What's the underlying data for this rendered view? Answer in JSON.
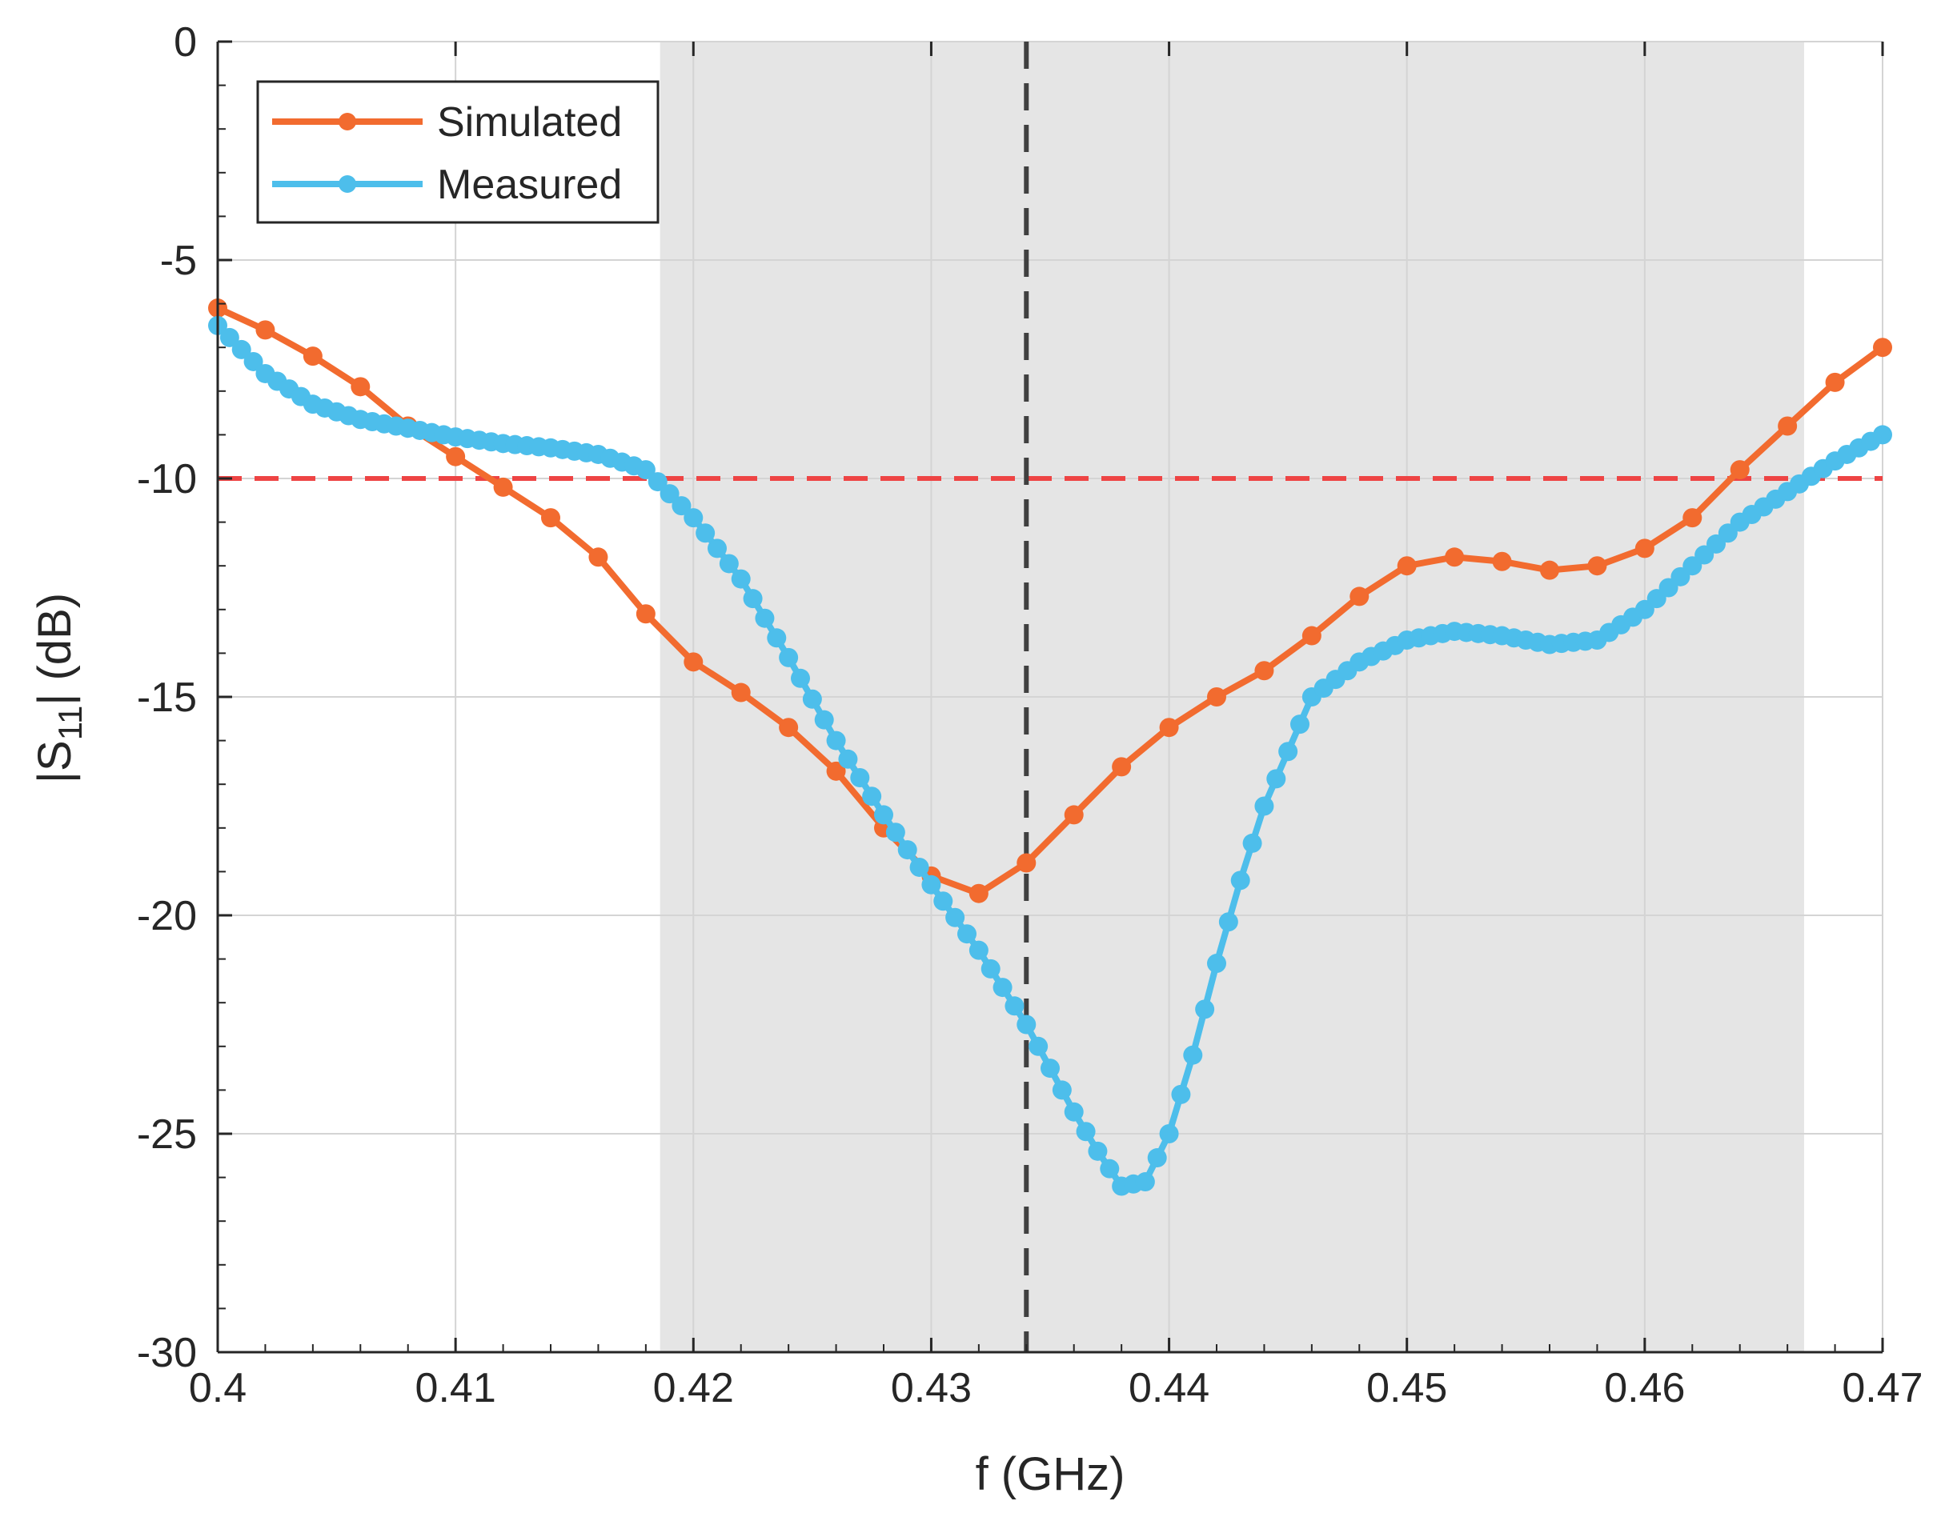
{
  "chart_data": {
    "type": "line",
    "title": "",
    "xlabel": "f (GHz)",
    "ylabel": {
      "prefix": "|S",
      "subscript": "11",
      "suffix": "| (dB)"
    },
    "xlim": [
      0.4,
      0.47
    ],
    "ylim": [
      -30,
      0
    ],
    "xticks": [
      0.4,
      0.41,
      0.42,
      0.43,
      0.44,
      0.45,
      0.46,
      0.47
    ],
    "xtick_labels": [
      "0.4",
      "0.41",
      "0.42",
      "0.43",
      "0.44",
      "0.45",
      "0.46",
      "0.47"
    ],
    "yticks": [
      0,
      -5,
      -10,
      -15,
      -20,
      -25,
      -30
    ],
    "ytick_labels": [
      "0",
      "-5",
      "-10",
      "-15",
      "-20",
      "-25",
      "-30"
    ],
    "grid": true,
    "legend": {
      "position": "top-left"
    },
    "shaded_band": {
      "x_start": 0.4186,
      "x_end": 0.4667,
      "color": "#e5e5e5"
    },
    "reference_lines": [
      {
        "orientation": "horizontal",
        "value": -10,
        "color": "#ee4444",
        "style": "dashed"
      },
      {
        "orientation": "vertical",
        "value": 0.434,
        "color": "#404040",
        "style": "dashed"
      }
    ],
    "series": [
      {
        "name": "Simulated",
        "color": "#f26b2f",
        "x": [
          0.4,
          0.402,
          0.404,
          0.406,
          0.408,
          0.41,
          0.412,
          0.414,
          0.416,
          0.418,
          0.42,
          0.422,
          0.424,
          0.426,
          0.428,
          0.43,
          0.432,
          0.434,
          0.436,
          0.438,
          0.44,
          0.442,
          0.444,
          0.446,
          0.448,
          0.45,
          0.452,
          0.454,
          0.456,
          0.458,
          0.46,
          0.462,
          0.464,
          0.466,
          0.468,
          0.47
        ],
        "values": [
          -6.1,
          -6.6,
          -7.2,
          -7.9,
          -8.8,
          -9.5,
          -10.2,
          -10.9,
          -11.8,
          -13.1,
          -14.2,
          -14.9,
          -15.7,
          -16.7,
          -18.0,
          -19.1,
          -19.5,
          -18.8,
          -17.7,
          -16.6,
          -15.7,
          -15.0,
          -14.4,
          -13.6,
          -12.7,
          -12.0,
          -11.8,
          -11.9,
          -12.1,
          -12.0,
          -11.6,
          -10.9,
          -9.8,
          -8.8,
          -7.8,
          -7.0
        ]
      },
      {
        "name": "Measured",
        "color": "#4dbeeb",
        "x": [
          0.4,
          0.402,
          0.404,
          0.406,
          0.408,
          0.41,
          0.412,
          0.414,
          0.416,
          0.418,
          0.42,
          0.422,
          0.424,
          0.426,
          0.428,
          0.43,
          0.432,
          0.434,
          0.436,
          0.437,
          0.438,
          0.439,
          0.44,
          0.441,
          0.442,
          0.443,
          0.444,
          0.446,
          0.448,
          0.45,
          0.452,
          0.454,
          0.456,
          0.458,
          0.46,
          0.462,
          0.464,
          0.466,
          0.468,
          0.47
        ],
        "values": [
          -6.5,
          -7.6,
          -8.3,
          -8.65,
          -8.85,
          -9.05,
          -9.2,
          -9.3,
          -9.45,
          -9.8,
          -10.9,
          -12.3,
          -14.1,
          -16.0,
          -17.7,
          -19.3,
          -20.8,
          -22.5,
          -24.5,
          -25.4,
          -26.2,
          -26.1,
          -25.0,
          -23.2,
          -21.1,
          -19.2,
          -17.5,
          -15.0,
          -14.2,
          -13.7,
          -13.5,
          -13.6,
          -13.8,
          -13.7,
          -13.0,
          -12.0,
          -11.0,
          -10.3,
          -9.6,
          -9.0
        ]
      }
    ]
  }
}
